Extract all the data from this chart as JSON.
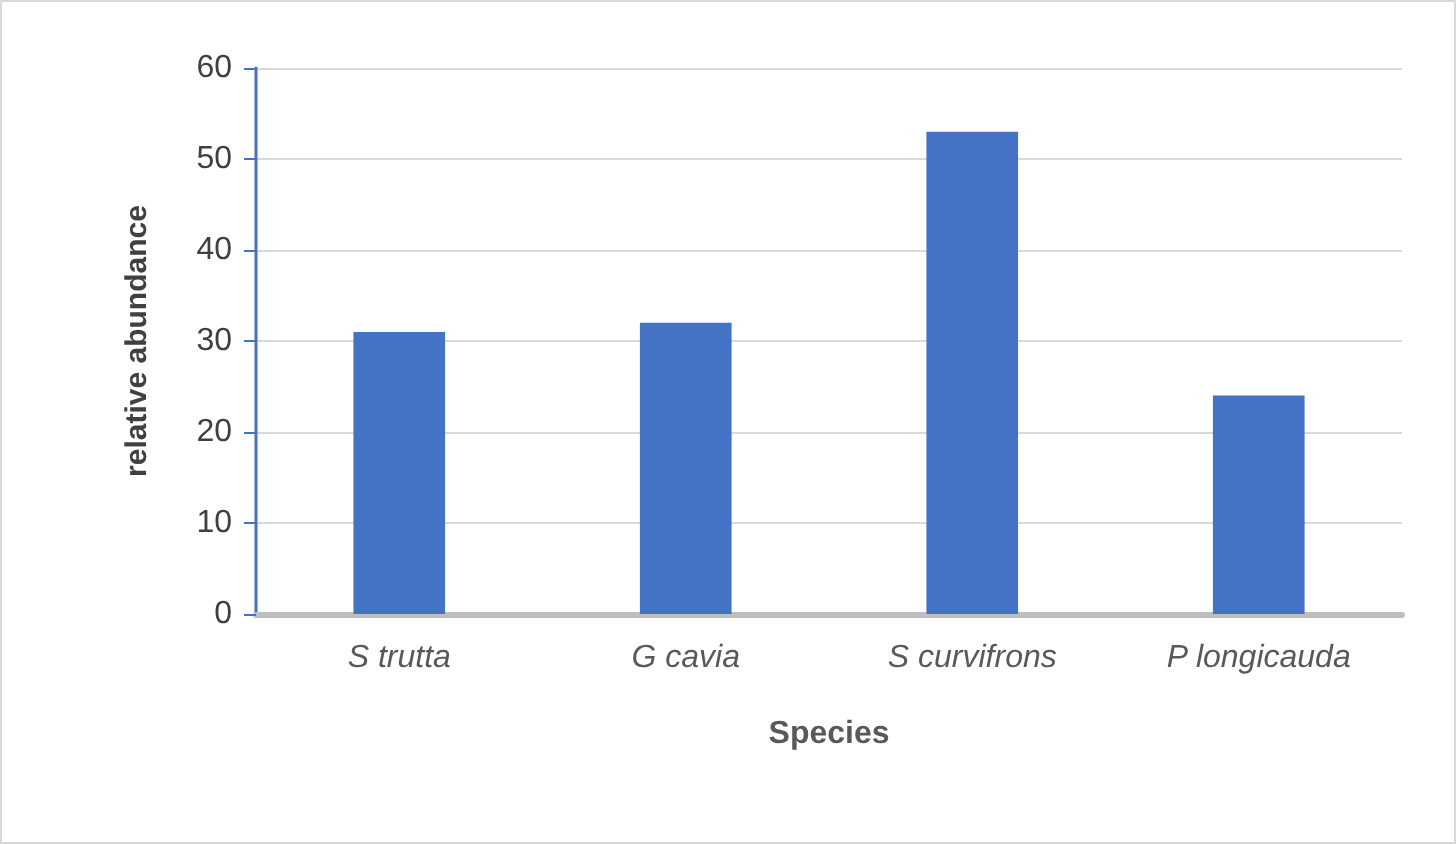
{
  "chart_data": {
    "type": "bar",
    "xlabel": "Species",
    "ylabel": "relative abundance",
    "categories": [
      "S trutta",
      "G cavia",
      "S curvifrons",
      "P longicauda"
    ],
    "values": [
      31,
      32,
      53,
      24
    ],
    "color": "#4472c4",
    "ylim": [
      0,
      60
    ],
    "yticks": [
      0,
      10,
      20,
      30,
      40,
      50,
      60
    ],
    "grid": "y"
  }
}
